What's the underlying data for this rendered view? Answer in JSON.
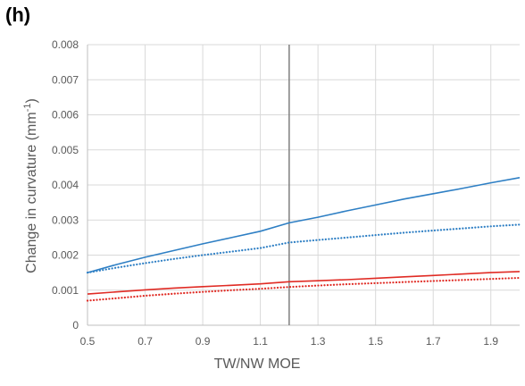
{
  "panel_label": "(h)",
  "chart_data": {
    "type": "line",
    "title": "",
    "xlabel": "TW/NW MOE",
    "ylabel_main": "Change in curvature (mm",
    "ylabel_sup": "-1",
    "ylabel_close": ")",
    "xlim": [
      0.5,
      2.0
    ],
    "ylim": [
      0,
      0.008
    ],
    "x_ticks": [
      "0.5",
      "0.7",
      "0.9",
      "1.1",
      "1.3",
      "1.5",
      "1.7",
      "1.9"
    ],
    "y_ticks": [
      "0",
      "0.001",
      "0.002",
      "0.003",
      "0.004",
      "0.005",
      "0.006",
      "0.007",
      "0.008"
    ],
    "grid": true,
    "vertical_marker_x": 1.2,
    "x": [
      0.5,
      0.6,
      0.7,
      0.8,
      0.9,
      1.0,
      1.1,
      1.2,
      1.3,
      1.4,
      1.5,
      1.6,
      1.7,
      1.8,
      1.9,
      2.0
    ],
    "series": [
      {
        "style": "solid",
        "color": "#2e7fc4",
        "values": [
          0.0015,
          0.00173,
          0.00194,
          0.00213,
          0.00232,
          0.0025,
          0.00268,
          0.00292,
          0.00308,
          0.00326,
          0.00343,
          0.0036,
          0.00375,
          0.0039,
          0.00406,
          0.00421
        ]
      },
      {
        "style": "dotted",
        "color": "#2e7fc4",
        "values": [
          0.0015,
          0.00164,
          0.00177,
          0.00189,
          0.002,
          0.0021,
          0.0022,
          0.00236,
          0.00243,
          0.0025,
          0.00257,
          0.00264,
          0.0027,
          0.00276,
          0.00282,
          0.00287
        ]
      },
      {
        "style": "solid",
        "color": "#e02b24",
        "values": [
          0.00089,
          0.00095,
          0.00101,
          0.00106,
          0.0011,
          0.00114,
          0.00118,
          0.00124,
          0.00127,
          0.0013,
          0.00134,
          0.00138,
          0.00142,
          0.00146,
          0.0015,
          0.00153
        ]
      },
      {
        "style": "dotted",
        "color": "#e02b24",
        "values": [
          0.0007,
          0.00077,
          0.00084,
          0.0009,
          0.00095,
          0.001,
          0.00104,
          0.00109,
          0.00113,
          0.00117,
          0.0012,
          0.00123,
          0.00126,
          0.00129,
          0.00132,
          0.00135
        ]
      }
    ]
  },
  "colors": {
    "grid": "#d9d9d9",
    "axis": "#bfbfbf",
    "marker": "#7f7f7f"
  }
}
